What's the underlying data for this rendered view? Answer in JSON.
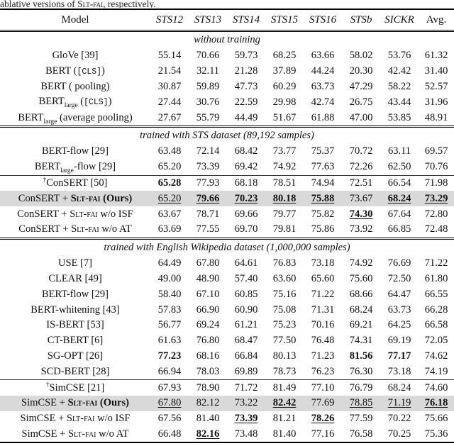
{
  "caption": {
    "parts": [
      {
        "t": "ablative versions of "
      },
      {
        "t": "Slt-fai",
        "s": "sc"
      },
      {
        "t": ", respectively."
      }
    ]
  },
  "colors": {
    "highlight_row": "#d9d9d9",
    "text": "#111111",
    "rule": "#000000"
  },
  "columns": [
    {
      "label": "Model",
      "italic": false
    },
    {
      "label": "STS12",
      "italic": true
    },
    {
      "label": "STS13",
      "italic": true
    },
    {
      "label": "STS14",
      "italic": true
    },
    {
      "label": "STS15",
      "italic": true
    },
    {
      "label": "STS16",
      "italic": true
    },
    {
      "label": "STSb",
      "italic": true
    },
    {
      "label": "SICKR",
      "italic": true
    },
    {
      "label": "Avg.",
      "italic": false
    }
  ],
  "sections": [
    {
      "title": "without training",
      "groups": [
        [
          {
            "m": [
              {
                "t": "GloVe [39]"
              }
            ],
            "v": [
              "55.14",
              "70.66",
              "59.73",
              "68.25",
              "63.66",
              "58.02",
              "53.76",
              "61.32"
            ]
          },
          {
            "m": [
              {
                "t": "BERT ("
              },
              {
                "t": "[CLS]",
                "s": "mono"
              },
              {
                "t": ")"
              }
            ],
            "v": [
              "21.54",
              "32.11",
              "21.28",
              "37.89",
              "44.24",
              "20.30",
              "42.42",
              "31.40"
            ]
          },
          {
            "m": [
              {
                "t": "BERT ( pooling)"
              }
            ],
            "v": [
              "30.87",
              "59.89",
              "47.73",
              "60.29",
              "63.73",
              "47.29",
              "58.22",
              "52.57"
            ]
          },
          {
            "m": [
              {
                "t": "BERT"
              },
              {
                "t": "large",
                "s": "sub"
              },
              {
                "t": " ("
              },
              {
                "t": "[CLS]",
                "s": "mono"
              },
              {
                "t": ")"
              }
            ],
            "v": [
              "27.44",
              "30.76",
              "22.59",
              "29.98",
              "42.74",
              "26.75",
              "43.44",
              "31.96"
            ]
          },
          {
            "m": [
              {
                "t": "BERT"
              },
              {
                "t": "large",
                "s": "sub"
              },
              {
                "t": " (average pooling)"
              }
            ],
            "v": [
              "27.67",
              "55.79",
              "44.49",
              "51.67",
              "61.88",
              "47.00",
              "53.85",
              "48.91"
            ]
          }
        ]
      ]
    },
    {
      "title": "trained with STS dataset (89,192 samples)",
      "groups": [
        [
          {
            "m": [
              {
                "t": "BERT-flow [29]"
              }
            ],
            "v": [
              "63.48",
              "72.14",
              "68.42",
              "73.77",
              "75.37",
              "70.72",
              "63.11",
              "69.57"
            ]
          },
          {
            "m": [
              {
                "t": "BERT"
              },
              {
                "t": "large",
                "s": "sub"
              },
              {
                "t": "-flow [29]"
              }
            ],
            "v": [
              "65.20",
              "73.39",
              "69.42",
              "74.92",
              "77.63",
              "72.26",
              "62.50",
              "70.76"
            ]
          }
        ],
        [
          {
            "m": [
              {
                "t": "†",
                "s": "sup"
              },
              {
                "t": "ConSERT [50]"
              }
            ],
            "v": [
              "65.28",
              "77.93",
              "68.18",
              "78.51",
              "74.94",
              "72.51",
              "66.54",
              "71.98"
            ],
            "b": [
              0
            ]
          },
          {
            "m": [
              {
                "t": "ConSERT + "
              },
              {
                "t": "Slt-fai",
                "s": "scb"
              },
              {
                "t": " (Ours)",
                "s": "b"
              }
            ],
            "v": [
              "65.20",
              "79.66",
              "70.23",
              "80.18",
              "75.88",
              "73.67",
              "68.24",
              "73.29"
            ],
            "b": [
              1,
              2,
              3,
              4,
              6,
              7
            ],
            "u": [
              0,
              1,
              2,
              3,
              4,
              6,
              7
            ],
            "highlight": true
          },
          {
            "m": [
              {
                "t": "ConSERT + "
              },
              {
                "t": "Slt-fai",
                "s": "sc"
              },
              {
                "t": " w/o ISF"
              }
            ],
            "v": [
              "63.67",
              "78.71",
              "69.66",
              "79.77",
              "75.82",
              "74.30",
              "67.64",
              "72.80"
            ],
            "b": [
              5
            ],
            "u": [
              5
            ]
          },
          {
            "m": [
              {
                "t": "ConSERT + "
              },
              {
                "t": "Slt-fai",
                "s": "sc"
              },
              {
                "t": " w/o AT"
              }
            ],
            "v": [
              "63.69",
              "77.55",
              "69.70",
              "79.81",
              "75.86",
              "73.92",
              "66.85",
              "72.48"
            ]
          }
        ]
      ]
    },
    {
      "title": "trained with English Wikipedia dataset (1,000,000 samples)",
      "groups": [
        [
          {
            "m": [
              {
                "t": "USE [7]"
              }
            ],
            "v": [
              "64.49",
              "67.80",
              "64.61",
              "76.83",
              "73.18",
              "74.92",
              "76.69",
              "71.22"
            ]
          },
          {
            "m": [
              {
                "t": "CLEAR [49]"
              }
            ],
            "v": [
              "49.00",
              "48.90",
              "57.40",
              "63.60",
              "65.60",
              "75.60",
              "72.50",
              "61.80"
            ]
          },
          {
            "m": [
              {
                "t": "BERT-flow [29]"
              }
            ],
            "v": [
              "58.40",
              "67.10",
              "60.85",
              "75.16",
              "71.22",
              "68.66",
              "64.47",
              "66.55"
            ]
          },
          {
            "m": [
              {
                "t": "BERT-whitening [43]"
              }
            ],
            "v": [
              "57.83",
              "66.90",
              "60.90",
              "75.08",
              "71.31",
              "68.24",
              "63.73",
              "66.28"
            ]
          },
          {
            "m": [
              {
                "t": "IS-BERT [53]"
              }
            ],
            "v": [
              "56.77",
              "69.24",
              "61.21",
              "75.23",
              "70.16",
              "69.21",
              "64.25",
              "66.58"
            ]
          },
          {
            "m": [
              {
                "t": "CT-BERT [6]"
              }
            ],
            "v": [
              "61.63",
              "76.80",
              "68.47",
              "77.50",
              "76.48",
              "74.31",
              "69.19",
              "72.05"
            ]
          },
          {
            "m": [
              {
                "t": "SG-OPT [26]"
              }
            ],
            "v": [
              "77.23",
              "68.16",
              "66.84",
              "80.13",
              "71.23",
              "81.56",
              "77.17",
              "74.62"
            ],
            "b": [
              0,
              5,
              6
            ]
          },
          {
            "m": [
              {
                "t": "SCD-BERT [28]"
              }
            ],
            "v": [
              "66.94",
              "78.03",
              "69.89",
              "78.73",
              "76.23",
              "76.30",
              "73.18",
              "74.19"
            ]
          }
        ],
        [
          {
            "m": [
              {
                "t": "†",
                "s": "sup"
              },
              {
                "t": "SimCSE [21]"
              }
            ],
            "v": [
              "67.93",
              "78.90",
              "71.72",
              "81.49",
              "77.10",
              "76.79",
              "68.24",
              "74.60"
            ]
          },
          {
            "m": [
              {
                "t": "SimCSE + "
              },
              {
                "t": "Slt-fai",
                "s": "scb"
              },
              {
                "t": " (Ours)",
                "s": "b"
              }
            ],
            "v": [
              "67.80",
              "82.12",
              "73.22",
              "82.42",
              "77.69",
              "78.85",
              "71.19",
              "76.18"
            ],
            "b": [
              3,
              7
            ],
            "u": [
              0,
              3,
              5,
              6,
              7
            ],
            "highlight": true
          },
          {
            "m": [
              {
                "t": "SimCSE + "
              },
              {
                "t": "Slt-fai",
                "s": "sc"
              },
              {
                "t": " w/o ISF"
              }
            ],
            "v": [
              "67.56",
              "81.40",
              "73.39",
              "81.21",
              "78.26",
              "77.59",
              "70.22",
              "75.66"
            ],
            "b": [
              2,
              4
            ],
            "u": [
              2,
              4
            ]
          },
          {
            "m": [
              {
                "t": "SimCSE + "
              },
              {
                "t": "Slt-fai",
                "s": "sc"
              },
              {
                "t": " w/o AT"
              }
            ],
            "v": [
              "66.48",
              "82.16",
              "73.48",
              "81.40",
              "77.16",
              "76.58",
              "70.25",
              "75.36"
            ],
            "b": [
              1
            ],
            "u": [
              1
            ]
          }
        ]
      ]
    }
  ]
}
